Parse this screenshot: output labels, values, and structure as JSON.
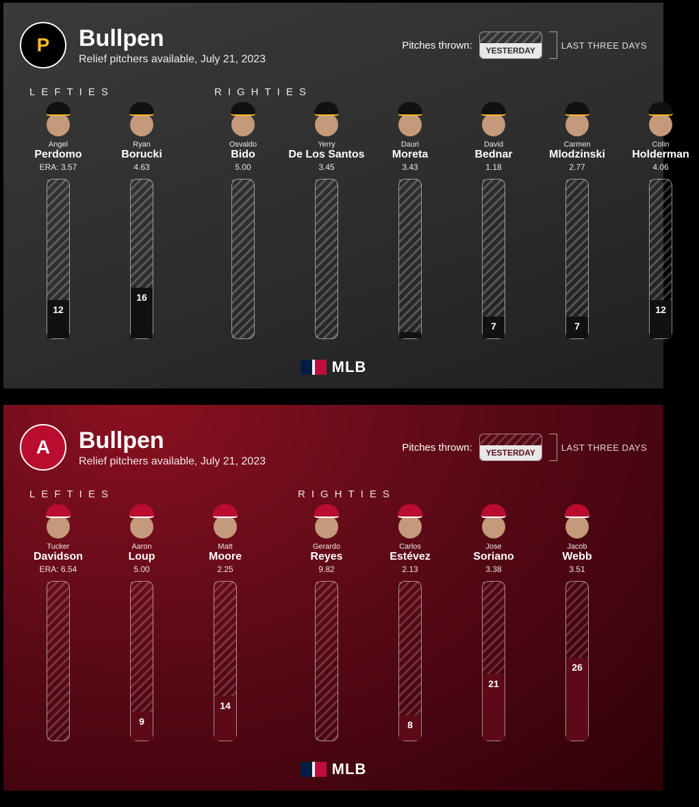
{
  "bar_max_pitches": 50,
  "panels": [
    {
      "id": "pirates",
      "background": "linear-gradient(160deg,#3a3a3a 0%,#2d2d2d 55%,#202020 100%)",
      "team_logo_letter": "P",
      "team_logo_text_color": "#fdb827",
      "team_logo_border_color": "#ffffff",
      "team_logo_bg": "#000000",
      "title": "Bullpen",
      "subtitle": "Relief pitchers available, July 21, 2023",
      "legend_label": "Pitches thrown:",
      "legend_yesterday_text": "YESTERDAY",
      "legend_last3_text": "LAST THREE DAYS",
      "legend_swatch_border": "rgba(255,255,255,0.5)",
      "legend_yesterday_bg": "#e8e8e8",
      "legend_yesterday_text_color": "#2b2b2b",
      "hatch_color": "rgba(255,255,255,0.22)",
      "bar_fill_color": "#111111",
      "cap_color": "#111111",
      "cap_accent": "#fdb827",
      "groups": [
        {
          "heading": "LEFTIES",
          "players": [
            {
              "first": "Angel",
              "last": "Perdomo",
              "era_label": "ERA: 3.57",
              "pitches_yesterday": 12
            },
            {
              "first": "Ryan",
              "last": "Borucki",
              "era_label": "4.63",
              "pitches_yesterday": 16
            }
          ]
        },
        {
          "heading": "RIGHTIES",
          "players": [
            {
              "first": "Osvaldo",
              "last": "Bido",
              "era_label": "5.00",
              "pitches_yesterday": 0
            },
            {
              "first": "Yerry",
              "last": "De Los Santos",
              "era_label": "3.45",
              "pitches_yesterday": 0
            },
            {
              "first": "Dauri",
              "last": "Moreta",
              "era_label": "3.43",
              "pitches_yesterday": 2
            },
            {
              "first": "David",
              "last": "Bednar",
              "era_label": "1.18",
              "pitches_yesterday": 7
            },
            {
              "first": "Carmen",
              "last": "Mlodzinski",
              "era_label": "2.77",
              "pitches_yesterday": 7
            },
            {
              "first": "Colin",
              "last": "Holderman",
              "era_label": "4.06",
              "pitches_yesterday": 12
            }
          ]
        }
      ]
    },
    {
      "id": "angels",
      "background": "radial-gradient(ellipse at 20% 0%, #8a1020 0%, #5c0a17 45%, #2e0008 100%)",
      "team_logo_letter": "A",
      "team_logo_text_color": "#ffffff",
      "team_logo_border_color": "#ffffff",
      "team_logo_bg": "#ba0c2f",
      "title": "Bullpen",
      "subtitle": "Relief pitchers available, July 21, 2023",
      "legend_label": "Pitches thrown:",
      "legend_yesterday_text": "YESTERDAY",
      "legend_last3_text": "LAST THREE DAYS",
      "legend_swatch_border": "rgba(255,255,255,0.5)",
      "legend_yesterday_bg": "#e8e8e8",
      "legend_yesterday_text_color": "#5c0a17",
      "hatch_color": "rgba(255,255,255,0.18)",
      "bar_fill_color": "#5c0a17",
      "cap_color": "#ba0c2f",
      "cap_accent": "#ffffff",
      "groups": [
        {
          "heading": "LEFTIES",
          "players": [
            {
              "first": "Tucker",
              "last": "Davidson",
              "era_label": "ERA: 6.54",
              "pitches_yesterday": 0
            },
            {
              "first": "Aaron",
              "last": "Loup",
              "era_label": "5.00",
              "pitches_yesterday": 9
            },
            {
              "first": "Matt",
              "last": "Moore",
              "era_label": "2.25",
              "pitches_yesterday": 14
            }
          ]
        },
        {
          "heading": "RIGHTIES",
          "players": [
            {
              "first": "Gerardo",
              "last": "Reyes",
              "era_label": "9.82",
              "pitches_yesterday": 0
            },
            {
              "first": "Carlos",
              "last": "Estévez",
              "era_label": "2.13",
              "pitches_yesterday": 8
            },
            {
              "first": "Jose",
              "last": "Soriano",
              "era_label": "3.38",
              "pitches_yesterday": 21
            },
            {
              "first": "Jacob",
              "last": "Webb",
              "era_label": "3.51",
              "pitches_yesterday": 26
            }
          ]
        }
      ]
    }
  ],
  "footer_text": "MLB"
}
